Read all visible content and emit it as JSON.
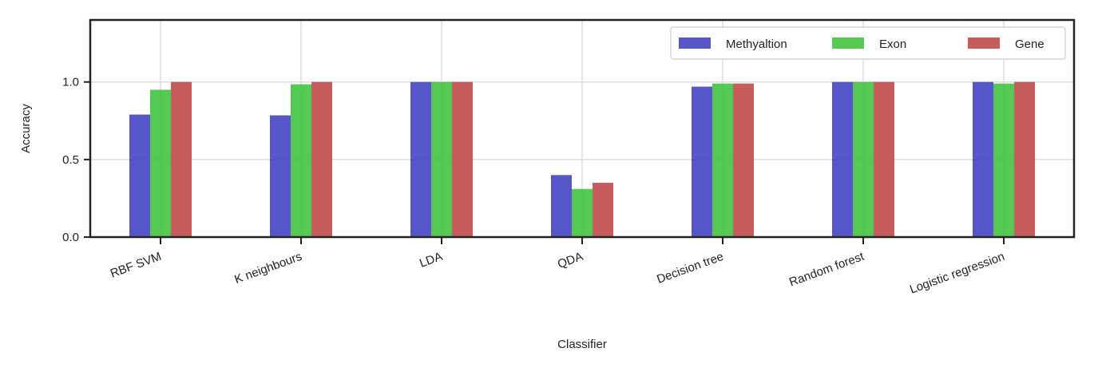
{
  "chart_data": {
    "type": "bar",
    "categories": [
      "RBF SVM",
      "K neighbours",
      "LDA",
      "QDA",
      "Decision tree",
      "Random forest",
      "Logistic regression"
    ],
    "series": [
      {
        "name": "Methyaltion",
        "color": "#3f3fc2",
        "values": [
          0.79,
          0.785,
          1.0,
          0.4,
          0.97,
          1.0,
          1.0
        ]
      },
      {
        "name": "Exon",
        "color": "#3cc13c",
        "values": [
          0.95,
          0.985,
          1.0,
          0.31,
          0.99,
          1.0,
          0.99
        ]
      },
      {
        "name": "Gene",
        "color": "#c04444",
        "values": [
          1.0,
          1.0,
          1.0,
          0.35,
          0.99,
          1.0,
          1.0
        ]
      }
    ],
    "xlabel": "Classifier",
    "ylabel": "Accuracy",
    "ylim": [
      0,
      1.4
    ],
    "yticks": [
      "0.0",
      "0.5",
      "1.0"
    ],
    "ytick_values": [
      0,
      0.5,
      1.0
    ],
    "grid": true,
    "legend": "top-right"
  }
}
